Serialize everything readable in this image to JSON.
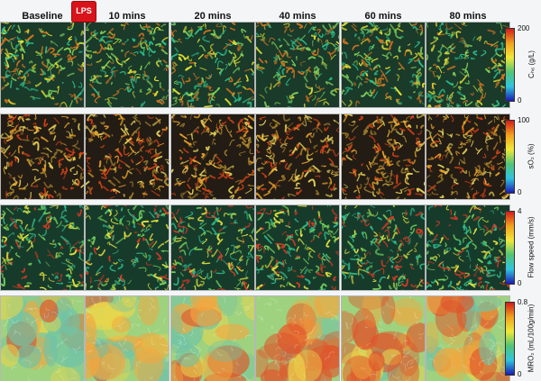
{
  "columns": [
    "Baseline",
    "10 mins",
    "20 mins",
    "40 mins",
    "60 mins",
    "80 mins"
  ],
  "lps_label": "LPS",
  "rows": [
    {
      "metric": "CHb",
      "colorbar": {
        "max": "200",
        "min": "0",
        "label": "Cₕ₆ (g/L)",
        "gradient": [
          "#d31c1c",
          "#f1a21e",
          "#f0e83a",
          "#52c476",
          "#31c4df",
          "#1b1bb0"
        ]
      },
      "style": "vessels",
      "palette": {
        "base": "#1a3a2a",
        "vessel": [
          "#e2e034",
          "#7fcf5a",
          "#2dbd8a",
          "#d6761f"
        ]
      }
    },
    {
      "metric": "sO2",
      "colorbar": {
        "max": "100",
        "min": "0",
        "label": "sO₂ (%)",
        "gradient": [
          "#d31c1c",
          "#f1a21e",
          "#f0e83a",
          "#52c476",
          "#31c4df",
          "#1b1bb0"
        ]
      },
      "style": "vessels",
      "palette": {
        "base": "#231c14",
        "vessel": [
          "#d64418",
          "#e5a02a",
          "#9c7a2b",
          "#e8d35a"
        ]
      }
    },
    {
      "metric": "Flow speed",
      "colorbar": {
        "max": "4",
        "min": "0",
        "label": "Flow speed (mm/s)",
        "gradient": [
          "#d31c1c",
          "#f1a21e",
          "#f0e83a",
          "#52c476",
          "#31c4df",
          "#1b1bb0"
        ]
      },
      "style": "vessels",
      "palette": {
        "base": "#173b2b",
        "vessel": [
          "#dfe23f",
          "#73d05c",
          "#d63a24",
          "#2fb98a"
        ]
      }
    },
    {
      "metric": "MRO2",
      "colorbar": {
        "max": "0.8",
        "min": "0",
        "label": "MRO₂ (mL/100g/min)",
        "gradient": [
          "#d31c1c",
          "#f1a21e",
          "#f0e83a",
          "#52c476",
          "#31c4df",
          "#1b1bb0"
        ]
      },
      "style": "field",
      "palette": {
        "base": "#9fd27e",
        "vessel": [
          "#ecd64a",
          "#f5a63d",
          "#e0552b",
          "#6fc3a7"
        ]
      }
    }
  ]
}
